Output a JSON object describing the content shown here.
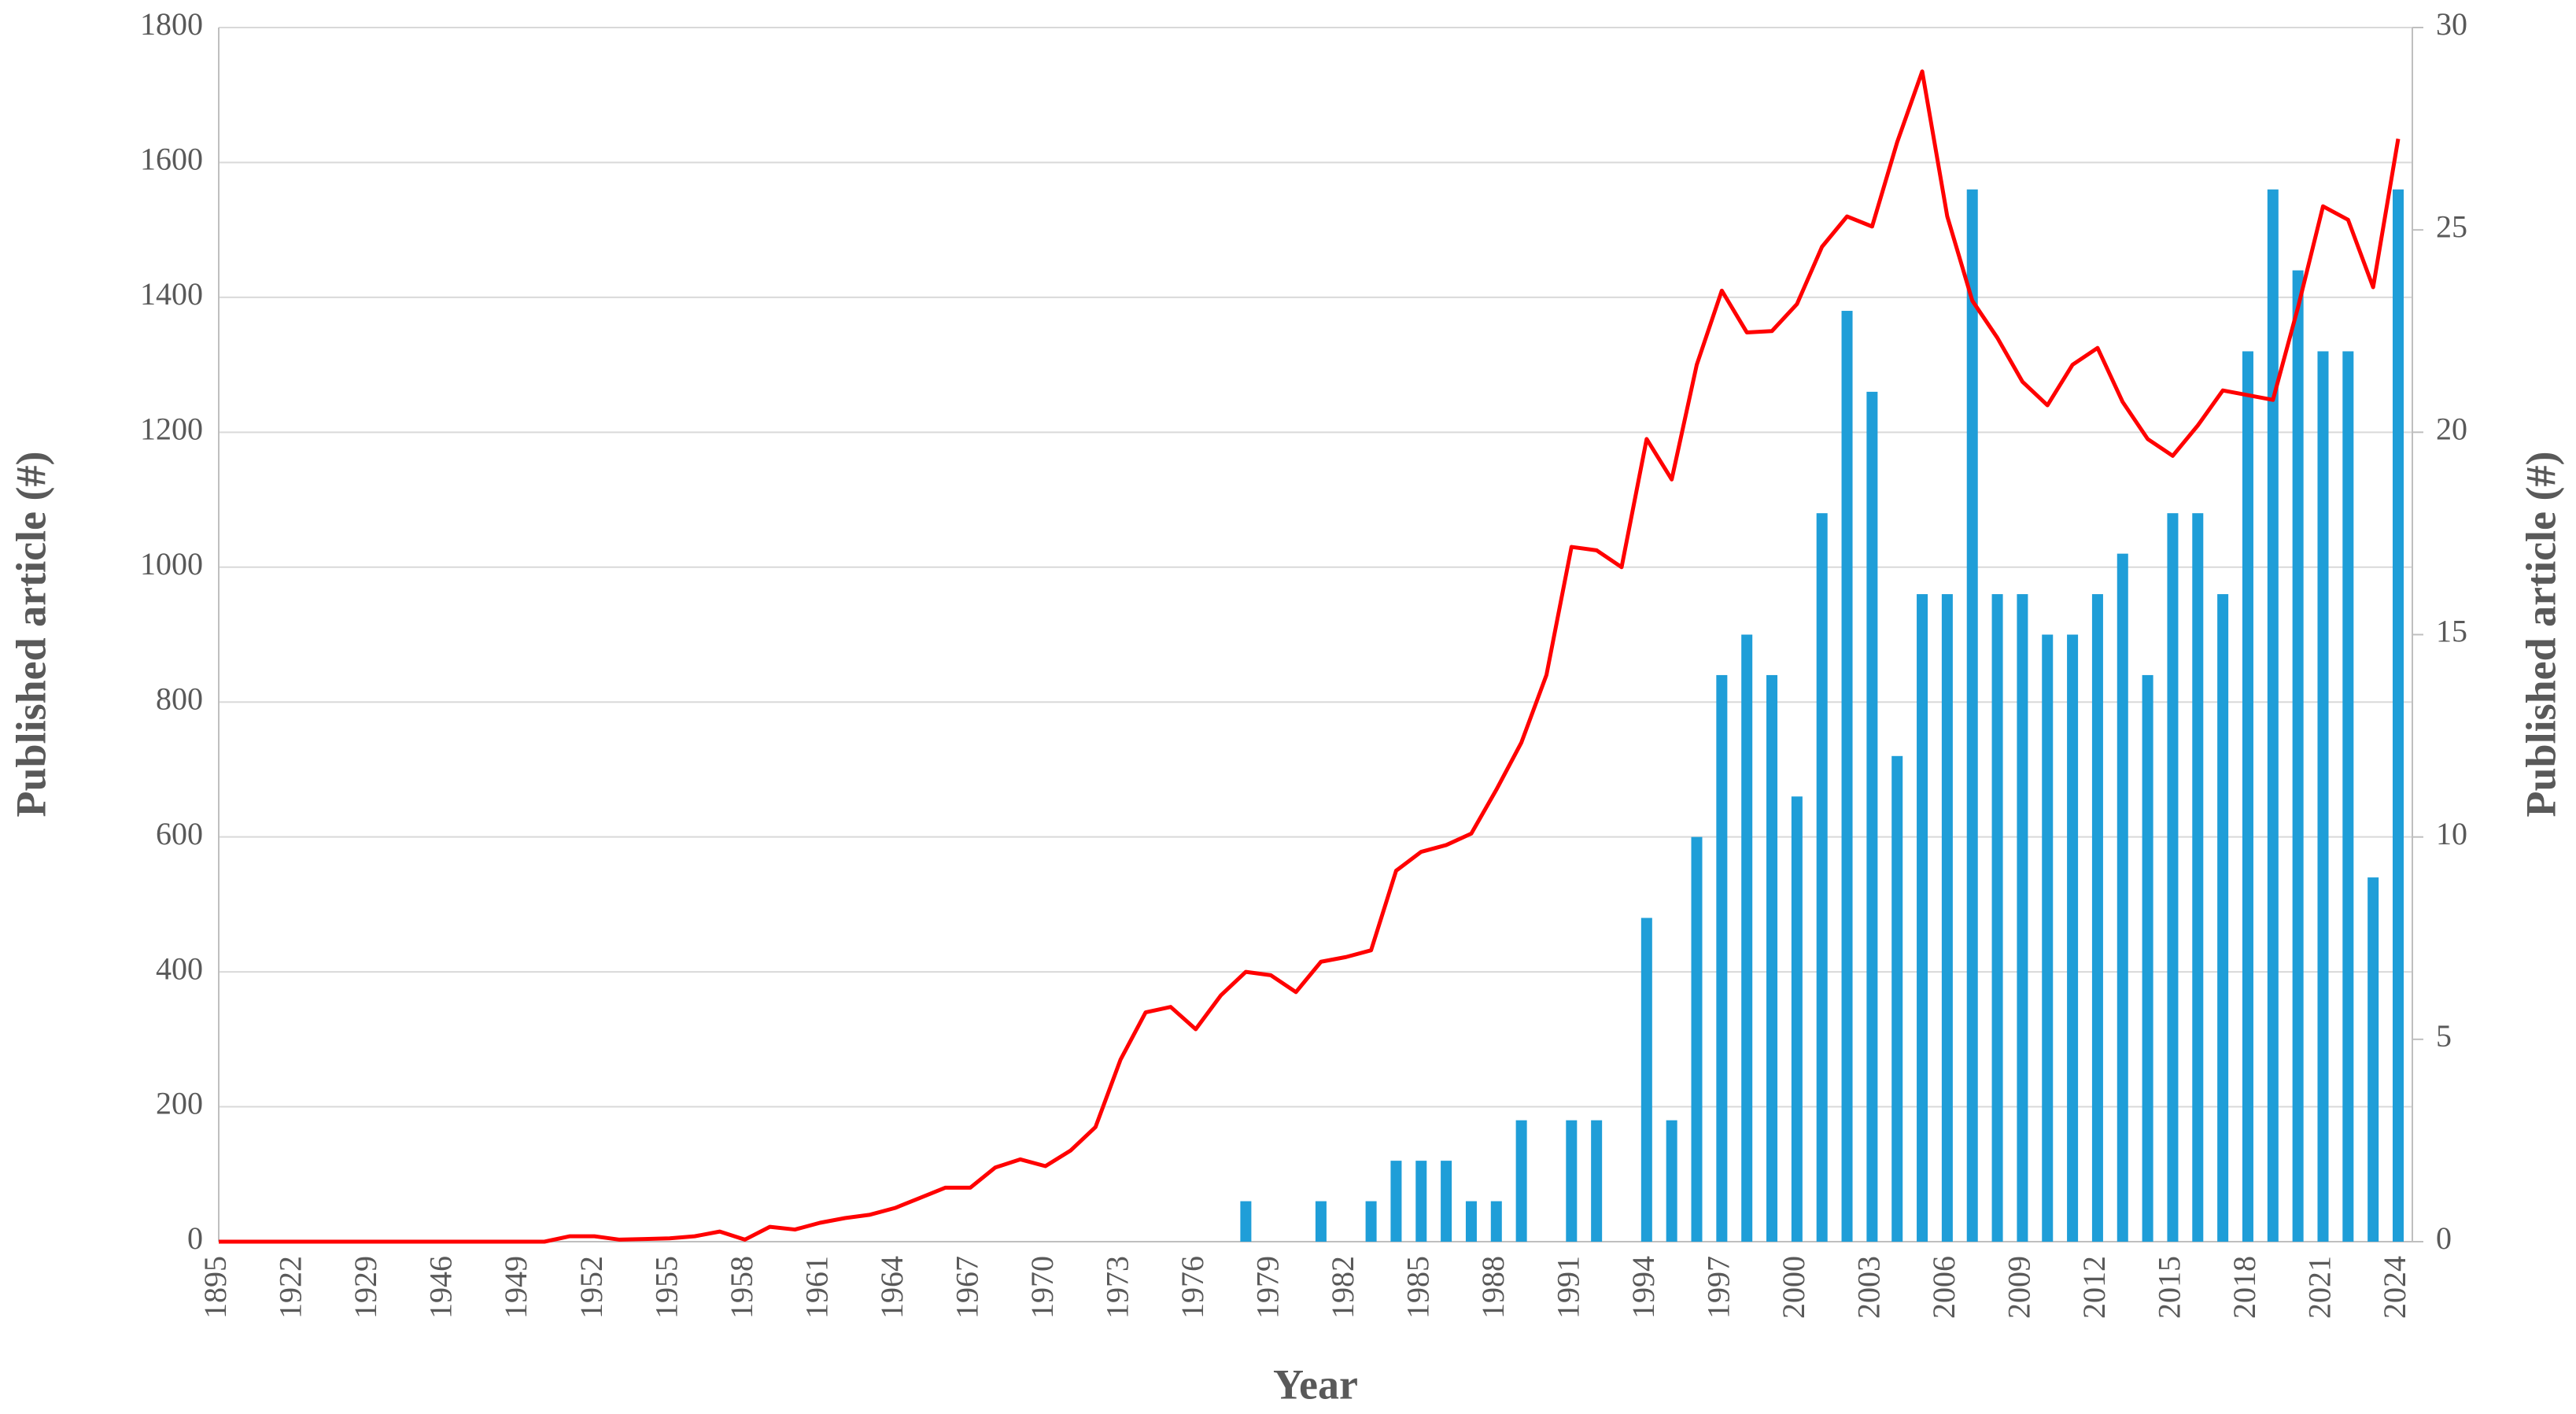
{
  "chart_data": {
    "type": "bar-line",
    "x_label": "Year",
    "y_label": "Published article (#)",
    "y2_label": "Published article (#)",
    "categories": [
      "1895",
      null,
      null,
      "1922",
      null,
      null,
      "1929",
      null,
      null,
      "1946",
      null,
      null,
      "1949",
      null,
      null,
      "1952",
      null,
      null,
      "1955",
      null,
      null,
      "1958",
      null,
      null,
      "1961",
      null,
      null,
      "1964",
      null,
      null,
      "1967",
      null,
      null,
      "1970",
      null,
      null,
      "1973",
      null,
      null,
      "1976",
      null,
      null,
      "1979",
      null,
      null,
      "1982",
      null,
      null,
      "1985",
      null,
      null,
      "1988",
      null,
      null,
      "1991",
      null,
      null,
      "1994",
      null,
      null,
      "1997",
      null,
      null,
      "2000",
      null,
      null,
      "2003",
      null,
      null,
      "2006",
      null,
      null,
      "2009",
      null,
      null,
      "2012",
      null,
      null,
      "2015",
      null,
      null,
      "2018",
      null,
      null,
      "2021",
      null,
      null,
      "2024"
    ],
    "series": [
      {
        "type": "line",
        "color": "#ff0000",
        "axis": "y",
        "values": [
          0,
          0,
          0,
          0,
          0,
          0,
          0,
          0,
          0,
          0,
          0,
          0,
          0,
          0,
          8,
          8,
          3,
          4,
          5,
          8,
          15,
          3,
          22,
          18,
          28,
          35,
          40,
          50,
          65,
          80,
          80,
          110,
          122,
          112,
          135,
          170,
          270,
          340,
          348,
          315,
          365,
          400,
          395,
          370,
          415,
          422,
          432,
          550,
          578,
          588,
          605,
          670,
          740,
          840,
          1030,
          1025,
          1000,
          1190,
          1130,
          1300,
          1410,
          1348,
          1350,
          1390,
          1475,
          1520,
          1505,
          1630,
          1735,
          1520,
          1395,
          1340,
          1275,
          1240,
          1300,
          1325,
          1245,
          1190,
          1165,
          1210,
          1262,
          1255,
          1248,
          1385,
          1535,
          1515,
          1415,
          1635
        ]
      },
      {
        "type": "bar",
        "color": "#1f9ed8",
        "axis": "y2",
        "values": [
          0,
          0,
          0,
          0,
          0,
          0,
          0,
          0,
          0,
          0,
          0,
          0,
          0,
          0,
          0,
          0,
          0,
          0,
          0,
          0,
          0,
          0,
          0,
          0,
          0,
          0,
          0,
          0,
          0,
          0,
          0,
          0,
          0,
          0,
          0,
          0,
          0,
          0,
          0,
          0,
          0,
          1,
          0,
          0,
          1,
          0,
          1,
          2,
          2,
          2,
          1,
          1,
          3,
          0,
          3,
          3,
          0,
          8,
          3,
          10,
          14,
          15,
          14,
          11,
          18,
          23,
          21,
          12,
          16,
          16,
          26,
          16,
          16,
          15,
          15,
          16,
          17,
          14,
          18,
          18,
          16,
          22,
          26,
          24,
          22,
          22,
          9,
          26
        ]
      }
    ],
    "ylim": [
      0,
      1800
    ],
    "yticks": [
      0,
      200,
      400,
      600,
      800,
      1000,
      1200,
      1400,
      1600,
      1800
    ],
    "y2lim": [
      0,
      30
    ],
    "y2ticks": [
      0,
      5,
      10,
      15,
      20,
      25,
      30
    ],
    "grid": true
  }
}
